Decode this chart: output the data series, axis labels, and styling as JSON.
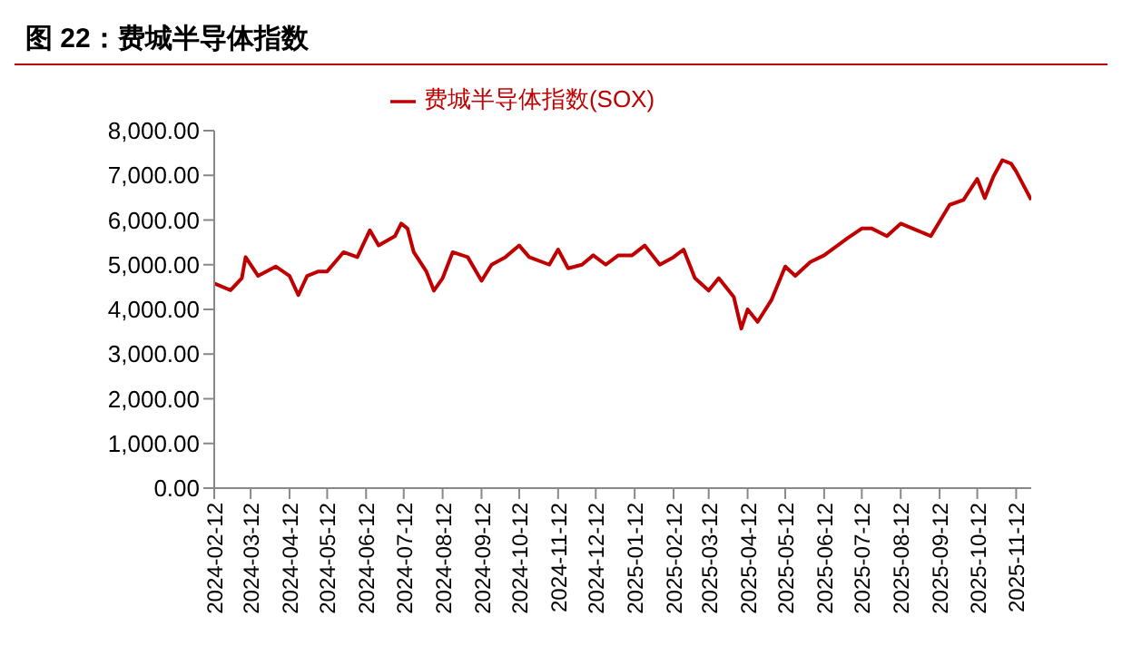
{
  "chart_data": {
    "type": "line",
    "title": "图 22：费城半导体指数",
    "legend": "top",
    "grid": false,
    "marker": "none",
    "line_style": "solid",
    "x": [
      "2024-02-12",
      "2024-02-25",
      "2024-03-05",
      "2024-03-08",
      "2024-03-18",
      "2024-04-01",
      "2024-04-12",
      "2024-04-19",
      "2024-04-26",
      "2024-05-05",
      "2024-05-12",
      "2024-05-25",
      "2024-06-05",
      "2024-06-15",
      "2024-06-22",
      "2024-07-05",
      "2024-07-10",
      "2024-07-15",
      "2024-07-20",
      "2024-07-30",
      "2024-08-05",
      "2024-08-12",
      "2024-08-20",
      "2024-09-01",
      "2024-09-12",
      "2024-09-20",
      "2024-10-01",
      "2024-10-12",
      "2024-10-20",
      "2024-11-05",
      "2024-11-12",
      "2024-11-20",
      "2024-12-01",
      "2024-12-10",
      "2024-12-20",
      "2024-12-30",
      "2025-01-10",
      "2025-01-20",
      "2025-02-01",
      "2025-02-12",
      "2025-02-20",
      "2025-03-01",
      "2025-03-12",
      "2025-03-20",
      "2025-04-01",
      "2025-04-07",
      "2025-04-12",
      "2025-04-20",
      "2025-05-01",
      "2025-05-12",
      "2025-05-20",
      "2025-06-01",
      "2025-06-12",
      "2025-07-01",
      "2025-07-12",
      "2025-07-20",
      "2025-08-01",
      "2025-08-12",
      "2025-08-25",
      "2025-09-05",
      "2025-09-20",
      "2025-10-01",
      "2025-10-12",
      "2025-10-18",
      "2025-10-25",
      "2025-11-01",
      "2025-11-08",
      "2025-11-12",
      "2025-11-18",
      "2025-11-24"
    ],
    "series": [
      {
        "name": "费城半导体指数(SOX)",
        "color": "#c00000",
        "values": [
          4580,
          4430,
          4700,
          5170,
          4750,
          4960,
          4750,
          4320,
          4750,
          4850,
          4850,
          5280,
          5170,
          5770,
          5430,
          5640,
          5920,
          5810,
          5280,
          4850,
          4420,
          4700,
          5280,
          5170,
          4640,
          5000,
          5170,
          5430,
          5170,
          5000,
          5340,
          4920,
          5000,
          5210,
          5000,
          5210,
          5210,
          5430,
          5000,
          5170,
          5340,
          4700,
          4420,
          4700,
          4280,
          3570,
          4000,
          3720,
          4210,
          4960,
          4750,
          5060,
          5210,
          5600,
          5810,
          5810,
          5640,
          5920,
          5770,
          5640,
          6340,
          6450,
          6920,
          6490,
          6980,
          7340,
          7260,
          7090,
          6770,
          6450
        ]
      }
    ],
    "xlim": [
      "2024-02-12",
      "2025-11-24"
    ],
    "xticks": [
      "2024-02-12",
      "2024-03-12",
      "2024-04-12",
      "2024-05-12",
      "2024-06-12",
      "2024-07-12",
      "2024-08-12",
      "2024-09-12",
      "2024-10-12",
      "2024-11-12",
      "2024-12-12",
      "2025-01-12",
      "2025-02-12",
      "2025-03-12",
      "2025-04-12",
      "2025-05-12",
      "2025-06-12",
      "2025-07-12",
      "2025-08-12",
      "2025-09-12",
      "2025-10-12",
      "2025-11-12"
    ],
    "ylim": [
      0,
      8000
    ],
    "yticks": [
      {
        "value": 0,
        "label": "0.00"
      },
      {
        "value": 1000,
        "label": "1,000.00"
      },
      {
        "value": 2000,
        "label": "2,000.00"
      },
      {
        "value": 3000,
        "label": "3,000.00"
      },
      {
        "value": 4000,
        "label": "4,000.00"
      },
      {
        "value": 5000,
        "label": "5,000.00"
      },
      {
        "value": 6000,
        "label": "6,000.00"
      },
      {
        "value": 7000,
        "label": "7,000.00"
      },
      {
        "value": 8000,
        "label": "8,000.00"
      }
    ]
  }
}
